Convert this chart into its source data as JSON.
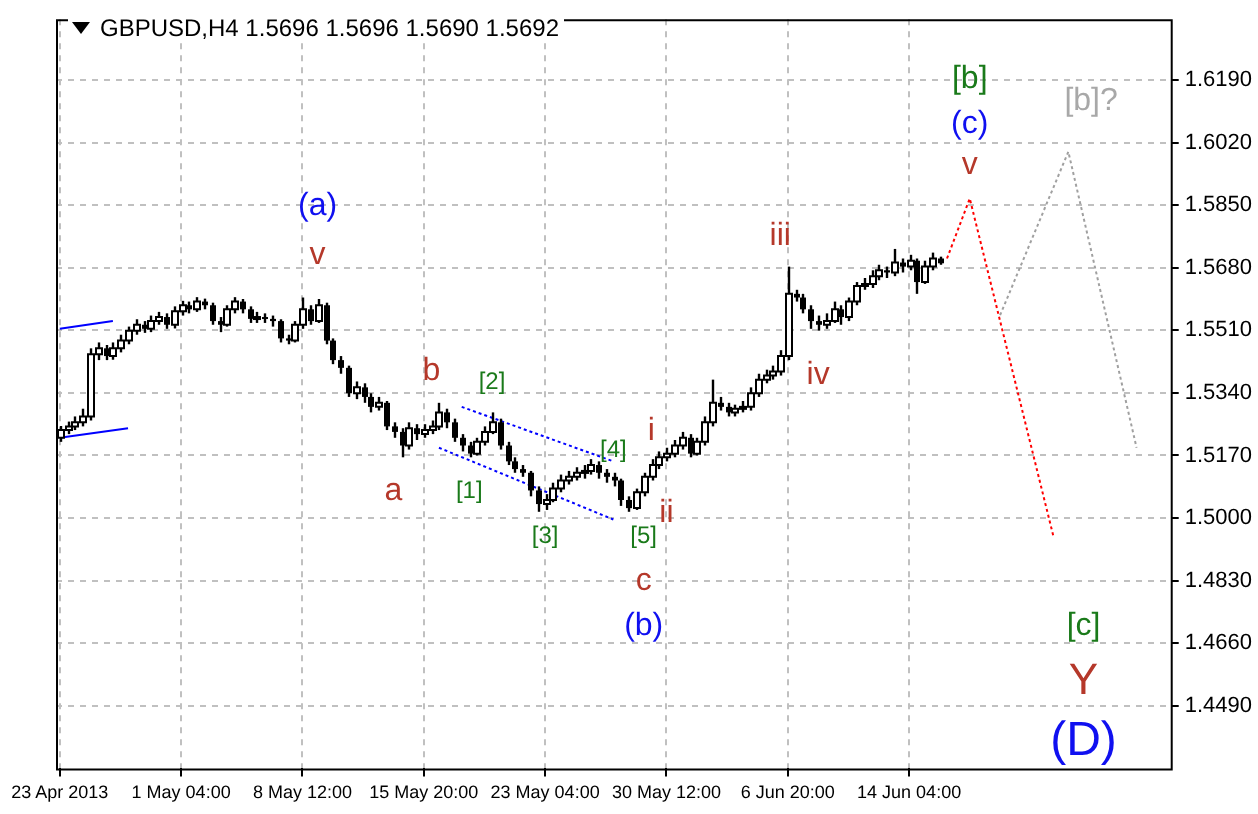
{
  "chart_data": {
    "type": "candlestick",
    "title": "GBPUSD,H4  1.5696 1.5696 1.5690 1.5692",
    "categories": [
      "23 Apr 2013",
      null,
      null,
      null,
      null,
      null,
      null,
      null,
      null,
      null,
      null,
      null,
      null,
      null,
      null,
      null,
      "1 May 04:00",
      null,
      null,
      null,
      null,
      null,
      null,
      null,
      null,
      null,
      null,
      null,
      null,
      null,
      null,
      null,
      "8 May 12:00",
      null,
      null,
      null,
      null,
      null,
      null,
      null,
      null,
      null,
      null,
      null,
      null,
      null,
      null,
      null,
      "15 May 20:00",
      null,
      null,
      null,
      null,
      null,
      null,
      null,
      null,
      null,
      null,
      null,
      null,
      null,
      null,
      null,
      "23 May 04:00",
      null,
      null,
      null,
      null,
      null,
      null,
      null,
      null,
      null,
      null,
      null,
      null,
      null,
      null,
      null,
      "30 May 12:00",
      null,
      null,
      null,
      null,
      null,
      null,
      null,
      null,
      null,
      null,
      null,
      null,
      null,
      null,
      null,
      "6 Jun 20:00",
      null,
      null,
      null,
      null,
      null,
      null,
      null,
      null,
      null,
      null,
      null,
      null,
      null,
      null,
      null,
      "14 Jun 04:00",
      null,
      null,
      null,
      null,
      null,
      null,
      null,
      null,
      null,
      null,
      null,
      null,
      null,
      null,
      null,
      null,
      null,
      null,
      null,
      null,
      null,
      null,
      null,
      null,
      null,
      null,
      null,
      null,
      null,
      null,
      null,
      null,
      null,
      null
    ],
    "ohlc": [
      [
        1.5218,
        1.525,
        1.5207,
        1.5239
      ],
      [
        1.5239,
        1.5262,
        1.5228,
        1.5249
      ],
      [
        1.5249,
        1.5276,
        1.5239,
        1.526
      ],
      [
        1.526,
        1.5297,
        1.5249,
        1.5276
      ],
      [
        1.5276,
        1.5461,
        1.5265,
        1.5445
      ],
      [
        1.5445,
        1.5477,
        1.5429,
        1.5461
      ],
      [
        1.5461,
        1.547,
        1.5429,
        1.544
      ],
      [
        1.544,
        1.5477,
        1.543,
        1.5461
      ],
      [
        1.5461,
        1.5498,
        1.545,
        1.5482
      ],
      [
        1.5482,
        1.552,
        1.5472,
        1.5509
      ],
      [
        1.5509,
        1.554,
        1.5498,
        1.5525
      ],
      [
        1.5525,
        1.5535,
        1.5503,
        1.5514
      ],
      [
        1.5514,
        1.555,
        1.5505,
        1.5535
      ],
      [
        1.5535,
        1.556,
        1.5525,
        1.5546
      ],
      [
        1.5546,
        1.5556,
        1.5514,
        1.5525
      ],
      [
        1.5525,
        1.5575,
        1.5515,
        1.5562
      ],
      [
        1.5562,
        1.559,
        1.555,
        1.5578
      ],
      [
        1.5578,
        1.5588,
        1.5556,
        1.5567
      ],
      [
        1.5567,
        1.56,
        1.556,
        1.5588
      ],
      [
        1.5588,
        1.5596,
        1.5567,
        1.5578
      ],
      [
        1.5578,
        1.5585,
        1.5525,
        1.5535
      ],
      [
        1.5535,
        1.5546,
        1.5505,
        1.5525
      ],
      [
        1.5525,
        1.5578,
        1.552,
        1.5567
      ],
      [
        1.5567,
        1.56,
        1.5556,
        1.5588
      ],
      [
        1.5588,
        1.5595,
        1.5556,
        1.5567
      ],
      [
        1.5567,
        1.5575,
        1.553,
        1.5541
      ],
      [
        1.5541,
        1.556,
        1.553,
        1.5546
      ],
      [
        1.5546,
        1.5556,
        1.553,
        1.5541
      ],
      [
        1.5541,
        1.555,
        1.552,
        1.5535
      ],
      [
        1.5535,
        1.554,
        1.5477,
        1.5488
      ],
      [
        1.5488,
        1.5498,
        1.5472,
        1.5482
      ],
      [
        1.5482,
        1.5535,
        1.5477,
        1.5525
      ],
      [
        1.5525,
        1.5599,
        1.5514,
        1.5567
      ],
      [
        1.5567,
        1.5578,
        1.5525,
        1.5535
      ],
      [
        1.5535,
        1.5595,
        1.553,
        1.5578
      ],
      [
        1.5578,
        1.5585,
        1.5472,
        1.5482
      ],
      [
        1.5482,
        1.5488,
        1.5418,
        1.5429
      ],
      [
        1.5429,
        1.544,
        1.5392,
        1.5408
      ],
      [
        1.5408,
        1.5414,
        1.5329,
        1.5339
      ],
      [
        1.5339,
        1.5371,
        1.5323,
        1.5355
      ],
      [
        1.5355,
        1.5366,
        1.5313,
        1.5329
      ],
      [
        1.5329,
        1.5339,
        1.5287,
        1.5302
      ],
      [
        1.5302,
        1.5329,
        1.5292,
        1.5313
      ],
      [
        1.5313,
        1.5318,
        1.5239,
        1.5249
      ],
      [
        1.5249,
        1.526,
        1.5218,
        1.5234
      ],
      [
        1.5234,
        1.5244,
        1.5165,
        1.5197
      ],
      [
        1.5197,
        1.526,
        1.5186,
        1.5244
      ],
      [
        1.5244,
        1.5255,
        1.5212,
        1.5228
      ],
      [
        1.5228,
        1.5255,
        1.5218,
        1.5239
      ],
      [
        1.5239,
        1.5265,
        1.5228,
        1.5249
      ],
      [
        1.5249,
        1.5313,
        1.5239,
        1.5287
      ],
      [
        1.5287,
        1.5297,
        1.5244,
        1.526
      ],
      [
        1.526,
        1.527,
        1.5207,
        1.5218
      ],
      [
        1.5218,
        1.5228,
        1.5181,
        1.5197
      ],
      [
        1.5197,
        1.5207,
        1.5165,
        1.5175
      ],
      [
        1.5175,
        1.5218,
        1.517,
        1.5207
      ],
      [
        1.5207,
        1.5249,
        1.5197,
        1.5234
      ],
      [
        1.5234,
        1.5287,
        1.5228,
        1.526
      ],
      [
        1.526,
        1.527,
        1.5186,
        1.5197
      ],
      [
        1.5197,
        1.5207,
        1.5144,
        1.5154
      ],
      [
        1.5154,
        1.5165,
        1.5123,
        1.5133
      ],
      [
        1.5133,
        1.5144,
        1.5112,
        1.5123
      ],
      [
        1.5123,
        1.5128,
        1.5059,
        1.5075
      ],
      [
        1.5075,
        1.5086,
        1.5017,
        1.5038
      ],
      [
        1.5038,
        1.5065,
        1.5022,
        1.5049
      ],
      [
        1.5049,
        1.5096,
        1.5043,
        1.508
      ],
      [
        1.508,
        1.5118,
        1.507,
        1.5102
      ],
      [
        1.5102,
        1.5128,
        1.5091,
        1.5112
      ],
      [
        1.5112,
        1.5138,
        1.5102,
        1.5123
      ],
      [
        1.5123,
        1.5144,
        1.5107,
        1.5128
      ],
      [
        1.5128,
        1.516,
        1.5118,
        1.5144
      ],
      [
        1.5144,
        1.5154,
        1.5107,
        1.5123
      ],
      [
        1.5123,
        1.5133,
        1.5096,
        1.5112
      ],
      [
        1.5112,
        1.5123,
        1.5086,
        1.5102
      ],
      [
        1.5102,
        1.5107,
        1.5033,
        1.5049
      ],
      [
        1.5049,
        1.5059,
        1.5017,
        1.5027
      ],
      [
        1.5027,
        1.508,
        1.5022,
        1.507
      ],
      [
        1.507,
        1.5123,
        1.5059,
        1.5112
      ],
      [
        1.5112,
        1.516,
        1.5102,
        1.5144
      ],
      [
        1.5144,
        1.5181,
        1.5133,
        1.5165
      ],
      [
        1.5165,
        1.5191,
        1.5154,
        1.5175
      ],
      [
        1.5175,
        1.5212,
        1.5165,
        1.5197
      ],
      [
        1.5197,
        1.5234,
        1.5186,
        1.5218
      ],
      [
        1.5218,
        1.5228,
        1.5165,
        1.5175
      ],
      [
        1.5175,
        1.5218,
        1.517,
        1.5207
      ],
      [
        1.5207,
        1.5276,
        1.5197,
        1.526
      ],
      [
        1.526,
        1.5376,
        1.5249,
        1.5313
      ],
      [
        1.5313,
        1.5329,
        1.5292,
        1.5302
      ],
      [
        1.5302,
        1.5313,
        1.5276,
        1.5287
      ],
      [
        1.5287,
        1.5308,
        1.5276,
        1.5297
      ],
      [
        1.5297,
        1.5318,
        1.5287,
        1.5302
      ],
      [
        1.5302,
        1.5355,
        1.5292,
        1.5339
      ],
      [
        1.5339,
        1.5392,
        1.5329,
        1.5376
      ],
      [
        1.5376,
        1.5403,
        1.5366,
        1.5387
      ],
      [
        1.5387,
        1.5414,
        1.5376,
        1.5398
      ],
      [
        1.5398,
        1.5456,
        1.5387,
        1.544
      ],
      [
        1.544,
        1.5683,
        1.5429,
        1.5609
      ],
      [
        1.5609,
        1.562,
        1.5588,
        1.5599
      ],
      [
        1.5599,
        1.5609,
        1.5556,
        1.5567
      ],
      [
        1.5567,
        1.5578,
        1.5514,
        1.5535
      ],
      [
        1.5535,
        1.555,
        1.5509,
        1.5525
      ],
      [
        1.5525,
        1.5556,
        1.5514,
        1.5535
      ],
      [
        1.5535,
        1.5588,
        1.553,
        1.5567
      ],
      [
        1.5567,
        1.5578,
        1.5525,
        1.5546
      ],
      [
        1.5546,
        1.5599,
        1.5535,
        1.5588
      ],
      [
        1.5588,
        1.5641,
        1.5578,
        1.563
      ],
      [
        1.563,
        1.5652,
        1.562,
        1.5636
      ],
      [
        1.5636,
        1.5673,
        1.5625,
        1.5657
      ],
      [
        1.5657,
        1.5688,
        1.5646,
        1.5673
      ],
      [
        1.5673,
        1.5683,
        1.5652,
        1.5667
      ],
      [
        1.5667,
        1.5731,
        1.5657,
        1.5694
      ],
      [
        1.5694,
        1.5705,
        1.5667,
        1.5683
      ],
      [
        1.5683,
        1.5715,
        1.5673,
        1.5699
      ],
      [
        1.5699,
        1.5705,
        1.5609,
        1.5641
      ],
      [
        1.5641,
        1.5699,
        1.5636,
        1.5683
      ],
      [
        1.5683,
        1.5721,
        1.5673,
        1.5705
      ],
      [
        1.5705,
        1.571,
        1.5688,
        1.5692
      ],
      null,
      null,
      null,
      null,
      null,
      null,
      null,
      null,
      null,
      null,
      null,
      null,
      null,
      null,
      null,
      null,
      null,
      null,
      null,
      null,
      null,
      null,
      null,
      null,
      null,
      null,
      null,
      null,
      null,
      null
    ],
    "ylim": [
      1.432,
      1.6355
    ],
    "yticks": [
      {
        "value": 1.619,
        "label": "1.6190"
      },
      {
        "value": 1.602,
        "label": "1.6020"
      },
      {
        "value": 1.585,
        "label": "1.5850"
      },
      {
        "value": 1.568,
        "label": "1.5680"
      },
      {
        "value": 1.551,
        "label": "1.5510"
      },
      {
        "value": 1.534,
        "label": "1.5340"
      },
      {
        "value": 1.517,
        "label": "1.5170"
      },
      {
        "value": 1.5,
        "label": "1.5000"
      },
      {
        "value": 1.483,
        "label": "1.4830"
      },
      {
        "value": 1.466,
        "label": "1.4660"
      },
      {
        "value": 1.449,
        "label": "1.4490"
      }
    ],
    "grid": true,
    "series": [
      {
        "type": "line",
        "color": "#0000ff",
        "line_style": "solid",
        "values": [
          1.5514,
          null,
          null,
          null,
          null,
          null,
          null,
          1.5535,
          null,
          null,
          null,
          null,
          null,
          null,
          null,
          null,
          null,
          null,
          null,
          null,
          null,
          null,
          null,
          null,
          null,
          null,
          null,
          null,
          null,
          null,
          null,
          null,
          null,
          null,
          null,
          null,
          null,
          null,
          null,
          null,
          null,
          null,
          null,
          null,
          null,
          null,
          null,
          null,
          null,
          null,
          null,
          null,
          null,
          null,
          null,
          null,
          null,
          null,
          null,
          null,
          null,
          null,
          null,
          null,
          null,
          null,
          null,
          null,
          null,
          null,
          null,
          null,
          null,
          null,
          null,
          null,
          null,
          null,
          null,
          null,
          null,
          null,
          null,
          null,
          null,
          null,
          null,
          null,
          null,
          null,
          null,
          null,
          null,
          null,
          null,
          null,
          null,
          null,
          null,
          null,
          null,
          null,
          null,
          null,
          null,
          null,
          null,
          null,
          null,
          null,
          null,
          null,
          null,
          null,
          null,
          null,
          null,
          null,
          null,
          null,
          null,
          null,
          null,
          null,
          null,
          null,
          null,
          null,
          null,
          null,
          null,
          null,
          null,
          null,
          null,
          null,
          null,
          null,
          null,
          null,
          null,
          null,
          null,
          null,
          null,
          null,
          null
        ]
      },
      {
        "type": "line",
        "color": "#0000ff",
        "line_style": "solid",
        "values": [
          1.5218,
          null,
          null,
          null,
          null,
          null,
          null,
          null,
          null,
          1.5244,
          null,
          null,
          null,
          null,
          null,
          null,
          null,
          null,
          null,
          null,
          null,
          null,
          null,
          null,
          null,
          null,
          null,
          null,
          null,
          null,
          null,
          null,
          null,
          null,
          null,
          null,
          null,
          null,
          null,
          null,
          null,
          null,
          null,
          null,
          null,
          null,
          null,
          null,
          null,
          null,
          null,
          null,
          null,
          null,
          null,
          null,
          null,
          null,
          null,
          null,
          null,
          null,
          null,
          null,
          null,
          null,
          null,
          null,
          null,
          null,
          null,
          null,
          null,
          null,
          null,
          null,
          null,
          null,
          null,
          null,
          null,
          null,
          null,
          null,
          null,
          null,
          null,
          null,
          null,
          null,
          null,
          null,
          null,
          null,
          null,
          null,
          null,
          null,
          null,
          null,
          null,
          null,
          null,
          null,
          null,
          null,
          null,
          null,
          null,
          null,
          null,
          null,
          null,
          null,
          null,
          null,
          null,
          null,
          null,
          null,
          null,
          null,
          null,
          null,
          null,
          null,
          null,
          null,
          null,
          null,
          null,
          null,
          null,
          null,
          null,
          null,
          null,
          null,
          null,
          null,
          null,
          null,
          null,
          null,
          null,
          null,
          null
        ]
      },
      {
        "type": "line",
        "color": "#0000ff",
        "line_style": "dotted",
        "values": [
          null,
          null,
          null,
          null,
          null,
          null,
          null,
          null,
          null,
          null,
          null,
          null,
          null,
          null,
          null,
          null,
          null,
          null,
          null,
          null,
          null,
          null,
          null,
          null,
          null,
          null,
          null,
          null,
          null,
          null,
          null,
          null,
          null,
          null,
          null,
          null,
          null,
          null,
          null,
          null,
          null,
          null,
          null,
          null,
          null,
          null,
          null,
          null,
          null,
          null,
          null,
          null,
          null,
          1.5302,
          null,
          null,
          null,
          null,
          null,
          null,
          null,
          null,
          null,
          null,
          null,
          null,
          null,
          null,
          null,
          null,
          null,
          null,
          null,
          1.5154,
          null,
          null,
          null,
          null,
          null,
          null,
          null,
          null,
          null,
          null,
          null,
          null,
          null,
          null,
          null,
          null,
          null,
          null,
          null,
          null,
          null,
          null,
          null,
          null,
          null,
          null,
          null,
          null,
          null,
          null,
          null,
          null,
          null,
          null,
          null,
          null,
          null,
          null,
          null,
          null,
          null,
          null,
          null,
          null,
          null,
          null,
          null,
          null,
          null,
          null,
          null,
          null,
          null,
          null,
          null,
          null,
          null,
          null,
          null,
          null,
          null,
          null,
          null,
          null,
          null,
          null,
          null,
          null,
          null,
          null,
          null,
          null,
          null
        ]
      },
      {
        "type": "line",
        "color": "#0000ff",
        "line_style": "dotted",
        "values": [
          null,
          null,
          null,
          null,
          null,
          null,
          null,
          null,
          null,
          null,
          null,
          null,
          null,
          null,
          null,
          null,
          null,
          null,
          null,
          null,
          null,
          null,
          null,
          null,
          null,
          null,
          null,
          null,
          null,
          null,
          null,
          null,
          null,
          null,
          null,
          null,
          null,
          null,
          null,
          null,
          null,
          null,
          null,
          null,
          null,
          null,
          null,
          null,
          null,
          null,
          1.5191,
          null,
          null,
          null,
          null,
          null,
          null,
          null,
          null,
          null,
          null,
          null,
          null,
          null,
          null,
          null,
          null,
          null,
          null,
          null,
          null,
          null,
          null,
          1.4996,
          null,
          null,
          null,
          null,
          null,
          null,
          null,
          null,
          null,
          null,
          null,
          null,
          null,
          null,
          null,
          null,
          null,
          null,
          null,
          null,
          null,
          null,
          null,
          null,
          null,
          null,
          null,
          null,
          null,
          null,
          null,
          null,
          null,
          null,
          null,
          null,
          null,
          null,
          null,
          null,
          null,
          null,
          null,
          null,
          null,
          null,
          null,
          null,
          null,
          null,
          null,
          null,
          null,
          null,
          null,
          null,
          null,
          null,
          null,
          null,
          null,
          null,
          null,
          null,
          null,
          null,
          null,
          null,
          null,
          null,
          null,
          null,
          null
        ]
      },
      {
        "type": "line",
        "color": "#ff0000",
        "line_style": "dotted",
        "values": [
          null,
          null,
          null,
          null,
          null,
          null,
          null,
          null,
          null,
          null,
          null,
          null,
          null,
          null,
          null,
          null,
          null,
          null,
          null,
          null,
          null,
          null,
          null,
          null,
          null,
          null,
          null,
          null,
          null,
          null,
          null,
          null,
          null,
          null,
          null,
          null,
          null,
          null,
          null,
          null,
          null,
          null,
          null,
          null,
          null,
          null,
          null,
          null,
          null,
          null,
          null,
          null,
          null,
          null,
          null,
          null,
          null,
          null,
          null,
          null,
          null,
          null,
          null,
          null,
          null,
          null,
          null,
          null,
          null,
          null,
          null,
          null,
          null,
          null,
          null,
          null,
          null,
          null,
          null,
          null,
          null,
          null,
          null,
          null,
          null,
          null,
          null,
          null,
          null,
          null,
          null,
          null,
          null,
          null,
          null,
          null,
          null,
          null,
          null,
          null,
          null,
          null,
          null,
          null,
          null,
          null,
          null,
          null,
          null,
          null,
          null,
          null,
          null,
          null,
          null,
          null,
          null,
          1.5705,
          null,
          null,
          1.5868,
          null,
          null,
          null,
          null,
          null,
          null,
          null,
          null,
          null,
          null,
          1.4953,
          null,
          null,
          null,
          null,
          null,
          null,
          null,
          null,
          null,
          null,
          null,
          null,
          null,
          null,
          null
        ]
      },
      {
        "type": "line",
        "color": "#a0a0a0",
        "line_style": "dotted",
        "values": [
          null,
          null,
          null,
          null,
          null,
          null,
          null,
          null,
          null,
          null,
          null,
          null,
          null,
          null,
          null,
          null,
          null,
          null,
          null,
          null,
          null,
          null,
          null,
          null,
          null,
          null,
          null,
          null,
          null,
          null,
          null,
          null,
          null,
          null,
          null,
          null,
          null,
          null,
          null,
          null,
          null,
          null,
          null,
          null,
          null,
          null,
          null,
          null,
          null,
          null,
          null,
          null,
          null,
          null,
          null,
          null,
          null,
          null,
          null,
          null,
          null,
          null,
          null,
          null,
          null,
          null,
          null,
          null,
          null,
          null,
          null,
          null,
          null,
          null,
          null,
          null,
          null,
          null,
          null,
          null,
          null,
          null,
          null,
          null,
          null,
          null,
          null,
          null,
          null,
          null,
          null,
          null,
          null,
          null,
          null,
          null,
          null,
          null,
          null,
          null,
          null,
          null,
          null,
          null,
          null,
          null,
          null,
          null,
          null,
          null,
          null,
          null,
          null,
          null,
          null,
          null,
          null,
          null,
          null,
          null,
          null,
          null,
          null,
          null,
          1.5551,
          null,
          null,
          null,
          null,
          null,
          null,
          null,
          null,
          1.5995,
          null,
          null,
          null,
          null,
          null,
          null,
          null,
          null,
          1.5191,
          null,
          null,
          null,
          null
        ]
      }
    ],
    "annotations": [
      "(a)",
      "v",
      "a",
      "b",
      "[1]",
      "[2]",
      "[3]",
      "[4]",
      "[5]",
      "c",
      "(b)",
      "i",
      "ii",
      "iii",
      "iv",
      "[b]",
      "(c)",
      "v",
      "[b]?",
      "[c]",
      "Y",
      "(D)"
    ]
  }
}
